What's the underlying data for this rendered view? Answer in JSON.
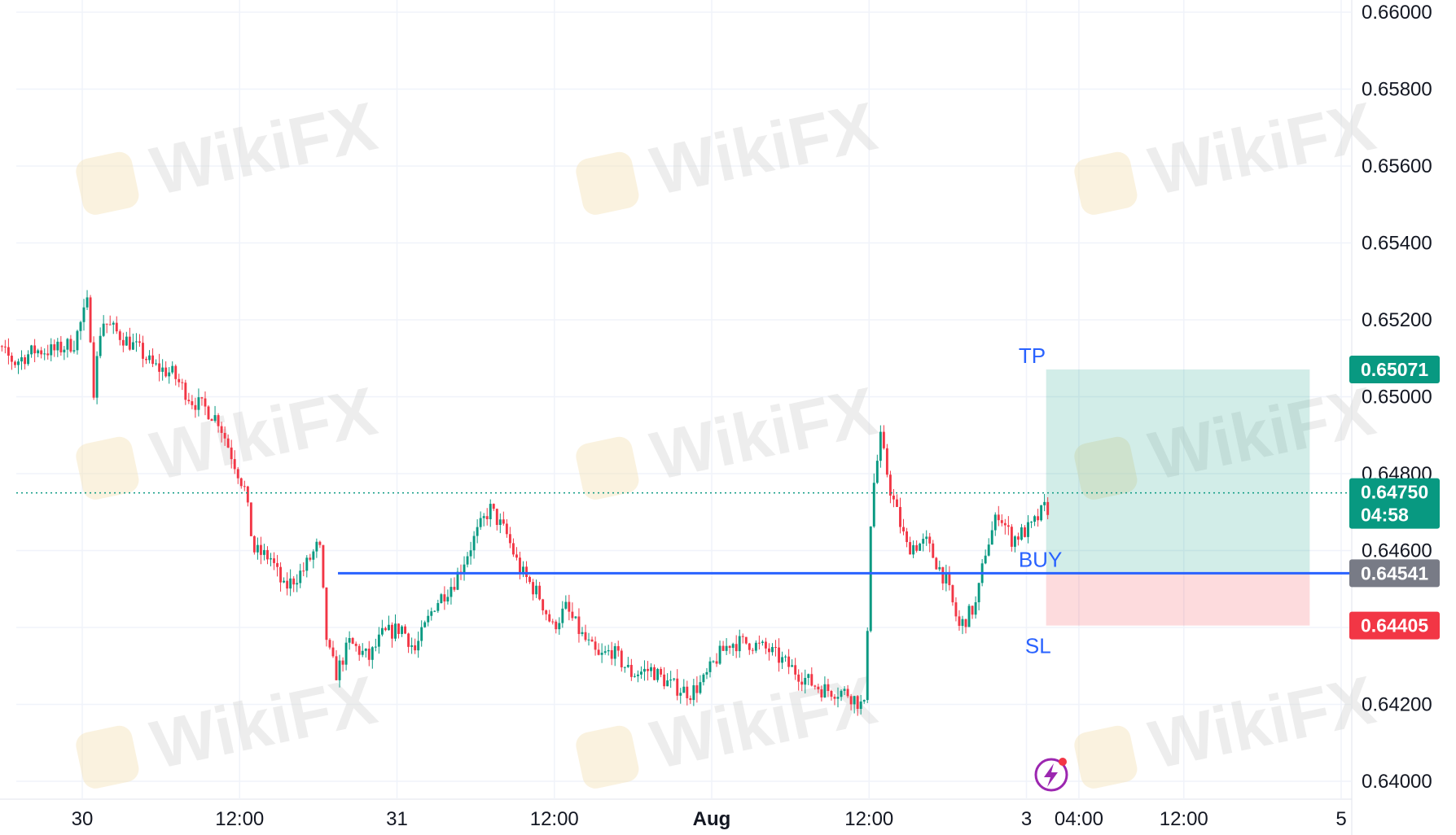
{
  "watermark": {
    "text": "WikiFX"
  },
  "chart_data": {
    "type": "candlestick",
    "instrument_levels": {
      "tp": {
        "label": "TP",
        "value": 0.65071,
        "color": "#089981"
      },
      "entry": {
        "label": "BUY",
        "value": 0.64541,
        "color": "#2962ff",
        "tag_color": "#787b86"
      },
      "sl": {
        "label": "SL",
        "value": 0.64405,
        "color": "#f23645"
      },
      "last": {
        "value": 0.6475,
        "countdown": "04:58",
        "color": "#089981"
      }
    },
    "ylim": [
      0.6395,
      0.661
    ],
    "yticks": [
      {
        "value": 0.66,
        "label": "0.66000"
      },
      {
        "value": 0.658,
        "label": "0.65800"
      },
      {
        "value": 0.656,
        "label": "0.65600"
      },
      {
        "value": 0.654,
        "label": "0.65400"
      },
      {
        "value": 0.652,
        "label": "0.65200"
      },
      {
        "value": 0.65,
        "label": "0.65000"
      },
      {
        "value": 0.648,
        "label": "0.64800"
      },
      {
        "value": 0.646,
        "label": "0.64600"
      },
      {
        "value": 0.642,
        "label": "0.64200"
      },
      {
        "value": 0.64,
        "label": "0.64000"
      }
    ],
    "xlim_hours": [
      -8,
      120
    ],
    "xticks": [
      {
        "hour": 0,
        "label": "30",
        "bold": false
      },
      {
        "hour": 12,
        "label": "12:00",
        "bold": false
      },
      {
        "hour": 24,
        "label": "31",
        "bold": false
      },
      {
        "hour": 36,
        "label": "12:00",
        "bold": false
      },
      {
        "hour": 48,
        "label": "Aug",
        "bold": true
      },
      {
        "hour": 60,
        "label": "12:00",
        "bold": false
      },
      {
        "hour": 72,
        "label": "3",
        "bold": false
      },
      {
        "hour": 76,
        "label": "04:00",
        "bold": false
      },
      {
        "hour": 84,
        "label": "12:00",
        "bold": false
      },
      {
        "hour": 96,
        "label": "5",
        "bold": false
      }
    ],
    "position_box": {
      "start_hour": 73.5,
      "end_hour": 93.6
    },
    "price_path": [
      [
        -8,
        0.6516
      ],
      [
        -6.5,
        0.6513
      ],
      [
        -5,
        0.6509
      ],
      [
        -3.5,
        0.6512
      ],
      [
        -2,
        0.6512
      ],
      [
        -0.5,
        0.6514
      ],
      [
        0.6,
        0.6525
      ],
      [
        1.0,
        0.6502
      ],
      [
        1.6,
        0.652
      ],
      [
        3,
        0.6516
      ],
      [
        4.5,
        0.6512
      ],
      [
        5.5,
        0.6508
      ],
      [
        7,
        0.6506
      ],
      [
        8.5,
        0.6499
      ],
      [
        9.5,
        0.6497
      ],
      [
        10.5,
        0.6494
      ],
      [
        11.5,
        0.6485
      ],
      [
        12.5,
        0.6476
      ],
      [
        13.2,
        0.646
      ],
      [
        14.5,
        0.6458
      ],
      [
        15.5,
        0.645
      ],
      [
        17,
        0.6455
      ],
      [
        18.2,
        0.6462
      ],
      [
        18.8,
        0.6435
      ],
      [
        19.5,
        0.6428
      ],
      [
        20.5,
        0.6436
      ],
      [
        22,
        0.6432
      ],
      [
        23,
        0.6438
      ],
      [
        24.5,
        0.644
      ],
      [
        25.5,
        0.6434
      ],
      [
        27,
        0.6446
      ],
      [
        28.5,
        0.6452
      ],
      [
        30,
        0.6463
      ],
      [
        31.2,
        0.6471
      ],
      [
        32.5,
        0.6464
      ],
      [
        33.5,
        0.6455
      ],
      [
        35,
        0.6448
      ],
      [
        36,
        0.644
      ],
      [
        37,
        0.6445
      ],
      [
        38.2,
        0.6438
      ],
      [
        39.5,
        0.6432
      ],
      [
        40.5,
        0.6434
      ],
      [
        42,
        0.6428
      ],
      [
        43.5,
        0.6429
      ],
      [
        45,
        0.6425
      ],
      [
        46.5,
        0.6423
      ],
      [
        47.5,
        0.6426
      ],
      [
        48.5,
        0.6432
      ],
      [
        49.5,
        0.6436
      ],
      [
        51,
        0.6436
      ],
      [
        52.5,
        0.6434
      ],
      [
        54,
        0.643
      ],
      [
        55.5,
        0.6426
      ],
      [
        56.5,
        0.6424
      ],
      [
        58.5,
        0.6423
      ],
      [
        59.8,
        0.6419
      ],
      [
        60.3,
        0.6473
      ],
      [
        61.0,
        0.6489
      ],
      [
        61.8,
        0.6475
      ],
      [
        63,
        0.6461
      ],
      [
        64.5,
        0.6462
      ],
      [
        66,
        0.6452
      ],
      [
        67,
        0.644
      ],
      [
        68.3,
        0.6446
      ],
      [
        69,
        0.646
      ],
      [
        70,
        0.647
      ],
      [
        71,
        0.6463
      ],
      [
        72.5,
        0.6466
      ],
      [
        73.5,
        0.6471
      ]
    ]
  }
}
